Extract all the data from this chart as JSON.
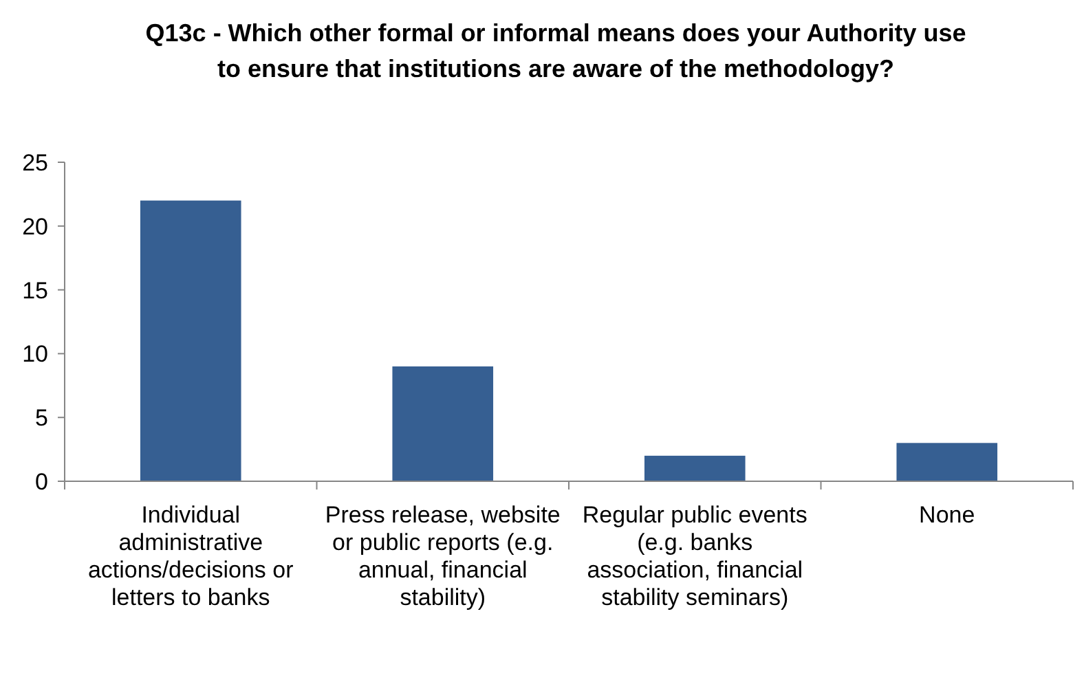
{
  "chart_data": {
    "type": "bar",
    "title": "Q13c - Which other formal or informal means does your Authority use to ensure that institutions are aware of the methodology?",
    "categories": [
      "Individual administrative actions/decisions or letters to banks",
      "Press release, website or public reports (e.g. annual, financial stability)",
      "Regular public events (e.g. banks association, financial stability seminars)",
      "None"
    ],
    "values": [
      22,
      9,
      2,
      3
    ],
    "color": "#365f92",
    "ylim": [
      0,
      25
    ],
    "yticks": [
      0,
      5,
      10,
      15,
      20,
      25
    ]
  }
}
